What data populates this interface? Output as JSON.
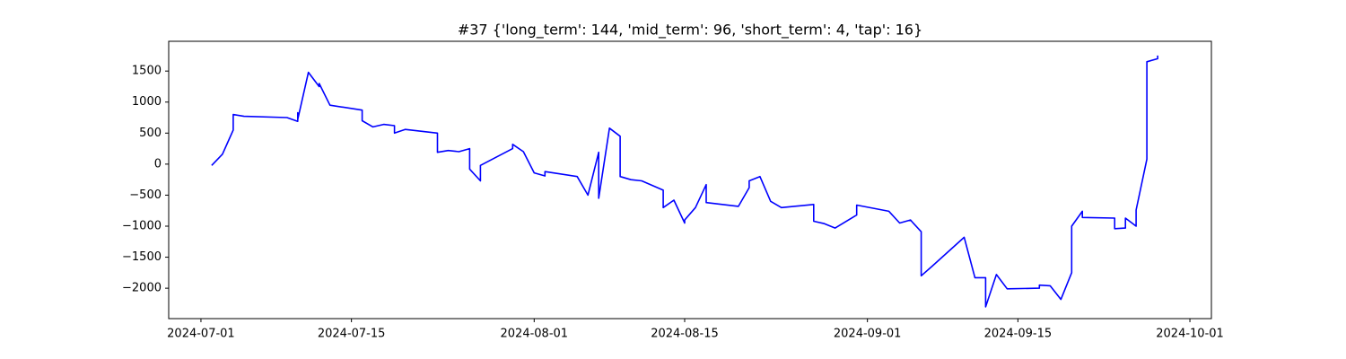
{
  "chart_data": {
    "type": "line",
    "title": "#37 {'long_term': 144, 'mid_term': 96, 'short_term': 4, 'tap': 16}",
    "x": [
      "2024-07-02",
      "2024-07-03",
      "2024-07-04",
      "2024-07-04",
      "2024-07-05",
      "2024-07-09",
      "2024-07-10",
      "2024-07-10",
      "2024-07-10",
      "2024-07-11",
      "2024-07-12",
      "2024-07-12",
      "2024-07-13",
      "2024-07-16",
      "2024-07-16",
      "2024-07-17",
      "2024-07-18",
      "2024-07-19",
      "2024-07-19",
      "2024-07-20",
      "2024-07-23",
      "2024-07-23",
      "2024-07-23",
      "2024-07-24",
      "2024-07-25",
      "2024-07-26",
      "2024-07-26",
      "2024-07-27",
      "2024-07-27",
      "2024-07-30",
      "2024-07-30",
      "2024-07-31",
      "2024-08-01",
      "2024-08-02",
      "2024-08-02",
      "2024-08-05",
      "2024-08-06",
      "2024-08-07",
      "2024-08-07",
      "2024-08-07",
      "2024-08-08",
      "2024-08-09",
      "2024-08-09",
      "2024-08-10",
      "2024-08-11",
      "2024-08-13",
      "2024-08-13",
      "2024-08-14",
      "2024-08-15",
      "2024-08-15",
      "2024-08-16",
      "2024-08-17",
      "2024-08-17",
      "2024-08-17",
      "2024-08-20",
      "2024-08-21",
      "2024-08-21",
      "2024-08-22",
      "2024-08-23",
      "2024-08-24",
      "2024-08-27",
      "2024-08-27",
      "2024-08-28",
      "2024-08-29",
      "2024-08-31",
      "2024-08-31",
      "2024-09-03",
      "2024-09-04",
      "2024-09-05",
      "2024-09-06",
      "2024-09-06",
      "2024-09-07",
      "2024-09-10",
      "2024-09-11",
      "2024-09-12",
      "2024-09-12",
      "2024-09-13",
      "2024-09-14",
      "2024-09-17",
      "2024-09-17",
      "2024-09-18",
      "2024-09-19",
      "2024-09-20",
      "2024-09-20",
      "2024-09-21",
      "2024-09-21",
      "2024-09-24",
      "2024-09-24",
      "2024-09-25",
      "2024-09-25",
      "2024-09-26",
      "2024-09-26",
      "2024-09-27",
      "2024-09-27",
      "2024-09-28",
      "2024-09-28"
    ],
    "series": [
      {
        "color": "#0000ff",
        "values": [
          -20,
          160,
          550,
          800,
          770,
          750,
          690,
          830,
          720,
          1480,
          1250,
          1300,
          950,
          870,
          700,
          600,
          640,
          620,
          500,
          560,
          500,
          310,
          190,
          220,
          200,
          250,
          -80,
          -270,
          -20,
          250,
          320,
          200,
          -140,
          -190,
          -120,
          -200,
          -500,
          190,
          -100,
          -550,
          580,
          450,
          -200,
          -250,
          -270,
          -420,
          -700,
          -580,
          -950,
          -900,
          -700,
          -330,
          -550,
          -620,
          -680,
          -380,
          -270,
          -200,
          -600,
          -700,
          -650,
          -920,
          -960,
          -1030,
          -820,
          -660,
          -760,
          -950,
          -900,
          -1090,
          -1800,
          -1650,
          -1180,
          -1830,
          -1830,
          -2300,
          -1780,
          -2010,
          -2000,
          -1950,
          -1960,
          -2180,
          -1750,
          -1000,
          -760,
          -860,
          -870,
          -1040,
          -1030,
          -870,
          -1000,
          -740,
          80,
          1650,
          1700,
          1750
        ]
      }
    ],
    "xlim": [
      "2024-06-28",
      "2024-10-03"
    ],
    "xticks": [
      "2024-07-01",
      "2024-07-15",
      "2024-08-01",
      "2024-08-15",
      "2024-09-01",
      "2024-09-15",
      "2024-10-01"
    ],
    "ylim": [
      -2490,
      1980
    ],
    "yticks": [
      {
        "value": -2000,
        "label": "−2000"
      },
      {
        "value": -1500,
        "label": "−1500"
      },
      {
        "value": -1000,
        "label": "−1000"
      },
      {
        "value": -500,
        "label": "−500"
      },
      0,
      500,
      1000,
      1500
    ]
  }
}
